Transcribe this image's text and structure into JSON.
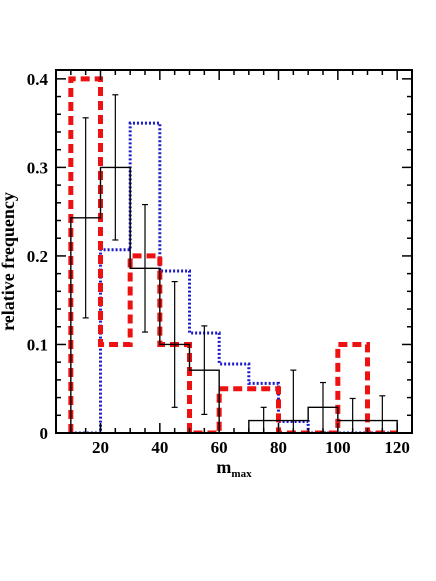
{
  "chart_data": {
    "type": "step-histogram",
    "title": "",
    "xlabel": "m",
    "xlabel_sub": "max",
    "ylabel": "relative frequency",
    "xlim": [
      5,
      125
    ],
    "ylim": [
      0,
      0.41
    ],
    "xticks": [
      20,
      40,
      60,
      80,
      100,
      120
    ],
    "xtick_labels": [
      "20",
      "40",
      "60",
      "80",
      "100",
      "120"
    ],
    "yticks": [
      0,
      0.1,
      0.2,
      0.3,
      0.4
    ],
    "ytick_labels": [
      "0",
      "0.1",
      "0.2",
      "0.3",
      "0.4"
    ],
    "grid": false,
    "legend": "none",
    "series": [
      {
        "style": "solid",
        "color": "#000000",
        "bins": [
          [
            10,
            20
          ],
          [
            20,
            30
          ],
          [
            30,
            40
          ],
          [
            40,
            50
          ],
          [
            50,
            60
          ],
          [
            60,
            70
          ],
          [
            70,
            80
          ],
          [
            80,
            90
          ],
          [
            90,
            100
          ],
          [
            100,
            110
          ],
          [
            110,
            120
          ]
        ],
        "values": [
          0.243,
          0.3,
          0.186,
          0.1,
          0.071,
          0.0,
          0.014,
          0.014,
          0.029,
          0.014,
          0.014
        ],
        "errors": [
          0.113,
          0.082,
          0.072,
          0.071,
          0.05,
          0.0,
          0.015,
          0.057,
          0.028,
          0.025,
          0.028
        ]
      },
      {
        "style": "dotted",
        "color": "#1a1acc",
        "bins": [
          [
            10,
            20
          ],
          [
            20,
            30
          ],
          [
            30,
            40
          ],
          [
            40,
            50
          ],
          [
            50,
            60
          ],
          [
            60,
            70
          ],
          [
            70,
            80
          ],
          [
            80,
            90
          ],
          [
            90,
            100
          ],
          [
            100,
            110
          ],
          [
            110,
            120
          ]
        ],
        "values": [
          0.0,
          0.207,
          0.35,
          0.183,
          0.113,
          0.078,
          0.056,
          0.013,
          0.0,
          0.0,
          0.0
        ]
      },
      {
        "style": "dashed",
        "color": "#ee1111",
        "bins": [
          [
            10,
            20
          ],
          [
            20,
            30
          ],
          [
            30,
            40
          ],
          [
            40,
            50
          ],
          [
            50,
            60
          ],
          [
            60,
            70
          ],
          [
            70,
            80
          ],
          [
            80,
            90
          ],
          [
            90,
            100
          ],
          [
            100,
            110
          ],
          [
            110,
            120
          ]
        ],
        "values": [
          0.4,
          0.1,
          0.2,
          0.1,
          0.0,
          0.05,
          0.05,
          0.0,
          0.0,
          0.1,
          0.0
        ]
      }
    ]
  }
}
